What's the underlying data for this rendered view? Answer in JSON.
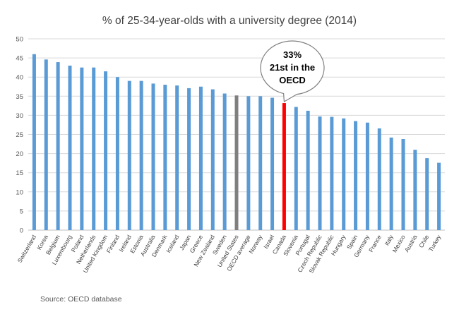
{
  "chart_data": {
    "type": "bar",
    "title": "% of 25-34-year-olds with a university degree (2014)",
    "xlabel": "",
    "ylabel": "",
    "ylim": [
      0,
      50
    ],
    "yticks": [
      0,
      5,
      10,
      15,
      20,
      25,
      30,
      35,
      40,
      45,
      50
    ],
    "grid": true,
    "legend": "none",
    "categories": [
      "Switzerland",
      "Korea",
      "Belgium",
      "Luxembourg",
      "Poland",
      "Netherlands",
      "United Kingdom",
      "Finland",
      "Ireland",
      "Estonia",
      "Australia",
      "Denmark",
      "Iceland",
      "Japan",
      "Greece",
      "New Zealand",
      "Sweden",
      "United States",
      "OECD average",
      "Norway",
      "Israel",
      "Canada",
      "Slovenia",
      "Portugal",
      "Czech Republic",
      "Slovak Republic",
      "Hungary",
      "Spain",
      "Germany",
      "France",
      "Italy",
      "Mexico",
      "Austria",
      "Chile",
      "Turkey"
    ],
    "values": [
      46.0,
      44.6,
      43.9,
      43.0,
      42.5,
      42.5,
      41.5,
      40.0,
      39.0,
      39.0,
      38.3,
      38.0,
      37.8,
      37.1,
      37.5,
      36.8,
      35.7,
      35.2,
      35.0,
      35.0,
      34.6,
      33.2,
      32.2,
      31.2,
      29.7,
      29.6,
      29.2,
      28.5,
      28.1,
      26.6,
      24.2,
      23.8,
      21.0,
      18.8,
      17.6
    ],
    "colors": {
      "default": "#5B9BD5",
      "highlight": "#FF0000",
      "united_states": "#7F7F7F",
      "gridline": "#D9D9D9"
    },
    "highlight_category": "Canada",
    "gray_category": "United States",
    "callout": {
      "lines": [
        "33%",
        "21st in the",
        "OECD"
      ]
    },
    "source": "Source: OECD database"
  }
}
